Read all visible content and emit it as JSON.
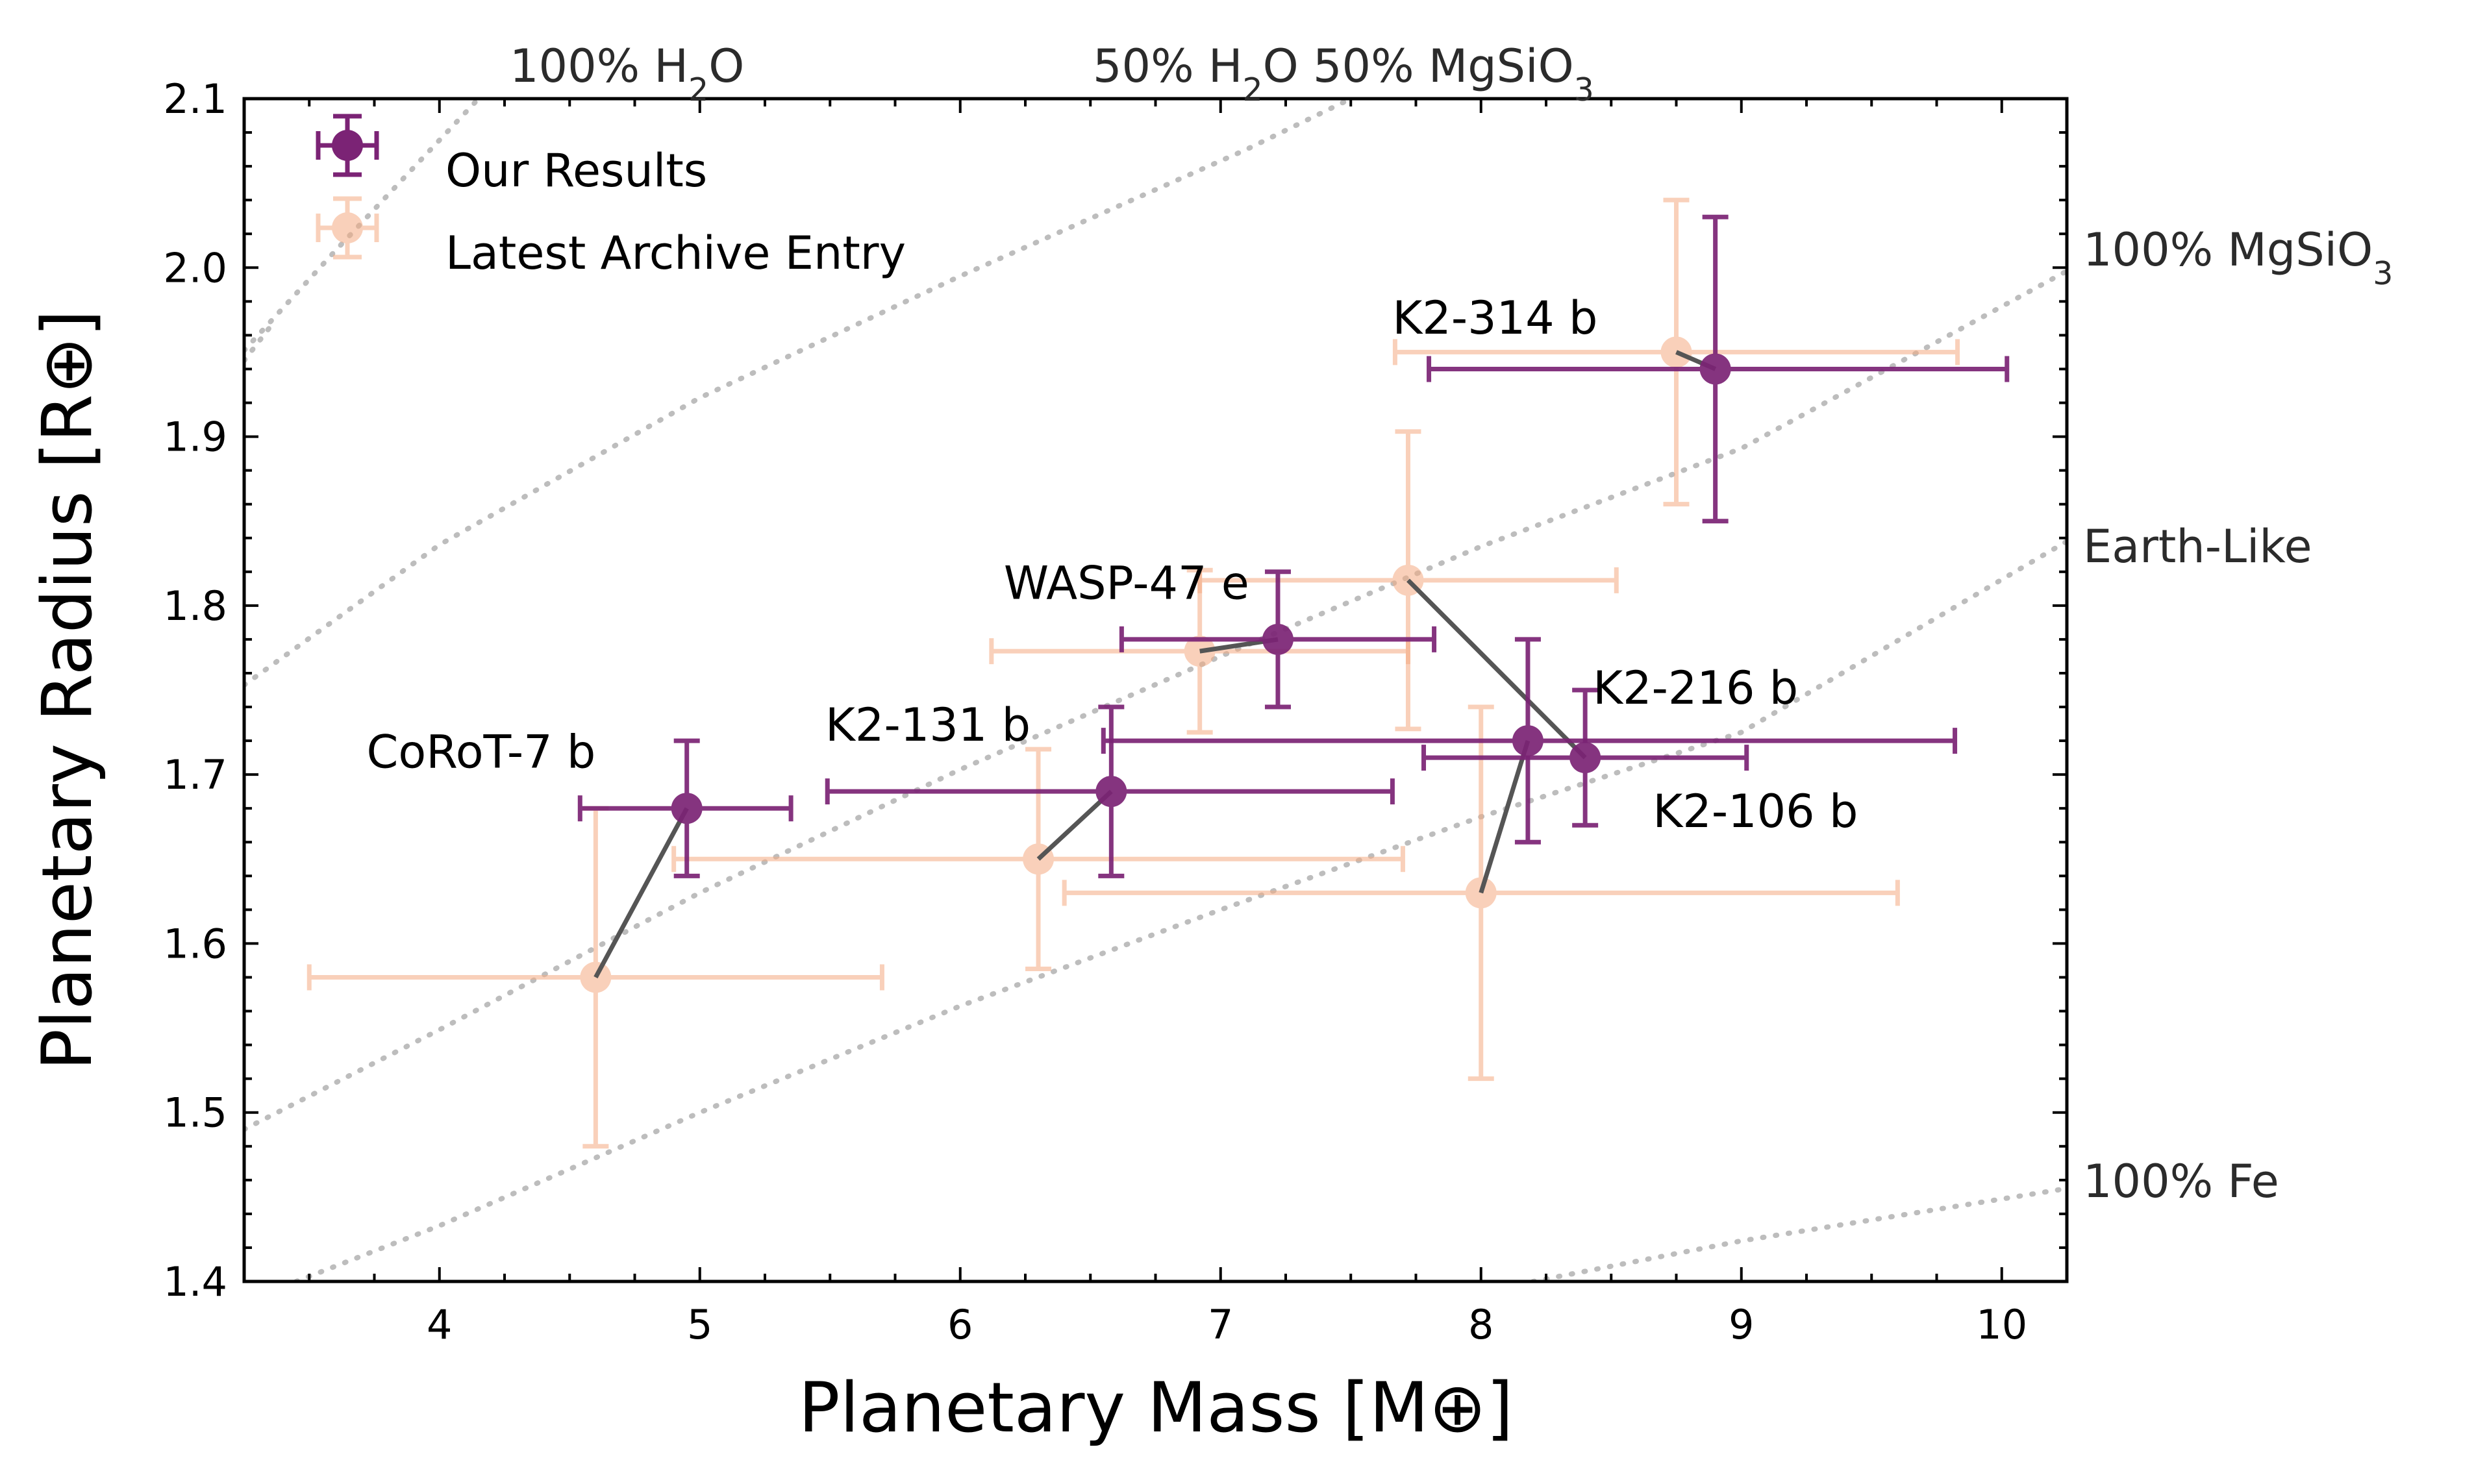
{
  "chart_data": {
    "type": "scatter",
    "title": "",
    "xlabel": "Planetary Mass [M⊕]",
    "ylabel": "Planetary Radius [R⊕]",
    "xlim": [
      3.25,
      10.25
    ],
    "ylim": [
      1.4,
      2.1
    ],
    "xticks": [
      4,
      5,
      6,
      7,
      8,
      9,
      10
    ],
    "yticks": [
      1.4,
      1.5,
      1.6,
      1.7,
      1.8,
      1.9,
      2.0,
      2.1
    ],
    "x_tick_labels": [
      "4",
      "5",
      "6",
      "7",
      "8",
      "9",
      "10"
    ],
    "y_tick_labels": [
      "1.4",
      "1.5",
      "1.6",
      "1.7",
      "1.8",
      "1.9",
      "2.0",
      "2.1"
    ],
    "grid": false,
    "legend": "top-left",
    "colors": {
      "ours": "#7b2375",
      "archive": "#f5ab82",
      "connector": "#555555",
      "model": "#bdbdbd"
    },
    "series": [
      {
        "name": "Our Results",
        "points": [
          {
            "planet": "CoRoT-7 b",
            "x": 4.95,
            "xerr": [
              0.41,
              0.4
            ],
            "y": 1.68,
            "yerr": [
              0.04,
              0.04
            ]
          },
          {
            "planet": "K2-131 b",
            "x": 6.58,
            "xerr": [
              1.09,
              1.08
            ],
            "y": 1.69,
            "yerr": [
              0.05,
              0.05
            ]
          },
          {
            "planet": "WASP-47 e",
            "x": 7.22,
            "xerr": [
              0.6,
              0.6
            ],
            "y": 1.78,
            "yerr": [
              0.04,
              0.04
            ]
          },
          {
            "planet": "K2-216 b",
            "x": 8.18,
            "xerr": [
              1.63,
              1.64
            ],
            "y": 1.72,
            "yerr": [
              0.06,
              0.06
            ]
          },
          {
            "planet": "K2-106 b",
            "x": 8.4,
            "xerr": [
              0.62,
              0.62
            ],
            "y": 1.71,
            "yerr": [
              0.04,
              0.04
            ]
          },
          {
            "planet": "K2-314 b",
            "x": 8.9,
            "xerr": [
              1.1,
              1.12
            ],
            "y": 1.94,
            "yerr": [
              0.09,
              0.09
            ]
          }
        ]
      },
      {
        "name": "Latest Archive Entry",
        "points": [
          {
            "planet": "CoRoT-7 b",
            "x": 4.6,
            "xerr": [
              1.1,
              1.1
            ],
            "y": 1.58,
            "yerr": [
              0.1,
              0.1
            ]
          },
          {
            "planet": "K2-131 b",
            "x": 6.3,
            "xerr": [
              1.4,
              1.4
            ],
            "y": 1.65,
            "yerr": [
              0.065,
              0.065
            ]
          },
          {
            "planet": "WASP-47 e",
            "x": 6.92,
            "xerr": [
              0.8,
              0.8
            ],
            "y": 1.773,
            "yerr": [
              0.048,
              0.048
            ]
          },
          {
            "planet": "K2-216 b",
            "x": 8.0,
            "xerr": [
              1.6,
              1.6
            ],
            "y": 1.63,
            "yerr": [
              0.11,
              0.11
            ]
          },
          {
            "planet": "K2-106 b",
            "x": 7.72,
            "xerr": [
              0.8,
              0.8
            ],
            "y": 1.815,
            "yerr": [
              0.088,
              0.088
            ]
          },
          {
            "planet": "K2-314 b",
            "x": 8.75,
            "xerr": [
              1.08,
              1.08
            ],
            "y": 1.95,
            "yerr": [
              0.09,
              0.09
            ]
          }
        ]
      }
    ],
    "planet_labels": [
      {
        "text": "CoRoT-7 b",
        "x": 4.6,
        "y": 1.704,
        "anchor": "end"
      },
      {
        "text": "K2-131 b",
        "x": 6.27,
        "y": 1.72,
        "anchor": "end"
      },
      {
        "text": "WASP-47 e",
        "x": 7.11,
        "y": 1.804,
        "anchor": "end"
      },
      {
        "text": "K2-216 b",
        "x": 8.43,
        "y": 1.742,
        "anchor": "start"
      },
      {
        "text": "K2-106 b",
        "x": 8.66,
        "y": 1.669,
        "anchor": "start"
      },
      {
        "text": "K2-314 b",
        "x": 7.66,
        "y": 1.961,
        "anchor": "start"
      }
    ],
    "composition_curves": [
      {
        "name": "100% H2O",
        "points": [
          [
            3.25,
            1.951
          ],
          [
            3.6,
            2.01
          ],
          [
            4.15,
            2.1
          ]
        ]
      },
      {
        "name": "100% H2O (upper)",
        "points": [
          [
            3.25,
            1.945
          ],
          [
            3.35,
            1.965
          ]
        ]
      },
      {
        "name": "50% H2O 50% MgSiO3",
        "points": [
          [
            3.25,
            1.753
          ],
          [
            4.0,
            1.836
          ],
          [
            5.0,
            1.923
          ],
          [
            6.0,
            1.995
          ],
          [
            7.1,
            2.07
          ],
          [
            7.5,
            2.1
          ]
        ]
      },
      {
        "name": "100% MgSiO3",
        "points": [
          [
            3.25,
            1.49
          ],
          [
            4.0,
            1.549
          ],
          [
            5.0,
            1.63
          ],
          [
            6.0,
            1.703
          ],
          [
            7.0,
            1.77
          ],
          [
            8.0,
            1.835
          ],
          [
            9.0,
            1.893
          ],
          [
            10.25,
            1.998
          ]
        ]
      },
      {
        "name": "Earth-Like",
        "points": [
          [
            3.45,
            1.4
          ],
          [
            4.0,
            1.433
          ],
          [
            5.0,
            1.5
          ],
          [
            6.0,
            1.563
          ],
          [
            7.0,
            1.62
          ],
          [
            8.0,
            1.675
          ],
          [
            9.0,
            1.725
          ],
          [
            10.25,
            1.838
          ]
        ]
      },
      {
        "name": "100% Fe",
        "points": [
          [
            8.2,
            1.4
          ],
          [
            9.0,
            1.424
          ],
          [
            10.25,
            1.455
          ]
        ]
      }
    ],
    "model_labels": [
      {
        "key": "h2o",
        "prefix": "100% H",
        "sub1": "2",
        "mid": "O",
        "sub2": "",
        "suffix": ""
      },
      {
        "key": "mix",
        "prefix": "50% H",
        "sub1": "2",
        "mid": "O 50% MgSiO",
        "sub2": "3",
        "suffix": ""
      },
      {
        "key": "mgsio3",
        "prefix": "100% MgSiO",
        "sub1": "3",
        "mid": "",
        "sub2": "",
        "suffix": ""
      },
      {
        "key": "earth",
        "prefix": "Earth-Like",
        "sub1": "",
        "mid": "",
        "sub2": "",
        "suffix": ""
      },
      {
        "key": "fe",
        "prefix": "100% Fe",
        "sub1": "",
        "mid": "",
        "sub2": "",
        "suffix": ""
      }
    ]
  }
}
